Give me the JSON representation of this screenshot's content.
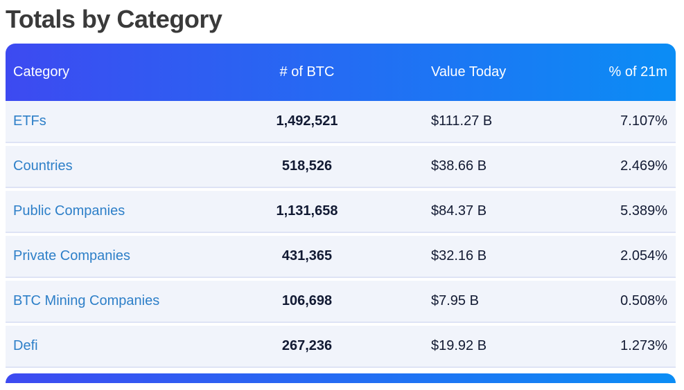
{
  "page": {
    "title": "Totals by Category"
  },
  "table": {
    "columns": [
      {
        "label": "Category"
      },
      {
        "label": "# of BTC"
      },
      {
        "label": "Value Today"
      },
      {
        "label": "% of 21m"
      }
    ],
    "rows": [
      {
        "category": "ETFs",
        "btc": "1,492,521",
        "value_today": "$111.27 B",
        "pct_of_21m": "7.107%"
      },
      {
        "category": "Countries",
        "btc": "518,526",
        "value_today": "$38.66 B",
        "pct_of_21m": "2.469%"
      },
      {
        "category": "Public Companies",
        "btc": "1,131,658",
        "value_today": "$84.37 B",
        "pct_of_21m": "5.389%"
      },
      {
        "category": "Private Companies",
        "btc": "431,365",
        "value_today": "$32.16 B",
        "pct_of_21m": "2.054%"
      },
      {
        "category": "BTC Mining Companies",
        "btc": "106,698",
        "value_today": "$7.95 B",
        "pct_of_21m": "0.508%"
      },
      {
        "category": "Defi",
        "btc": "267,236",
        "value_today": "$19.92 B",
        "pct_of_21m": "1.273%"
      }
    ]
  },
  "colors": {
    "header_gradient_start": "#3d4af1",
    "header_gradient_end": "#0b8df5",
    "link_color": "#2d7fc8",
    "number_color": "#121a33",
    "row_bg": "#f1f4fb",
    "divider_color": "#dee3f5",
    "title_color": "#3a3a3a"
  }
}
